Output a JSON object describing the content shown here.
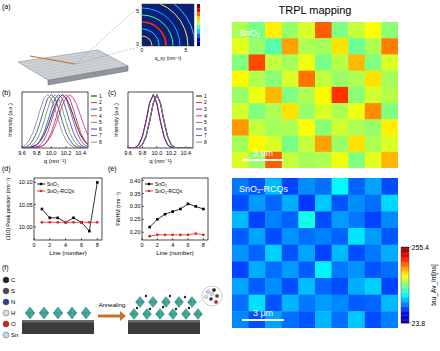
{
  "panel_a": {
    "label": "(a)",
    "axis_label": "q_xy (nm⁻¹)",
    "tick_labels": [
      "0",
      "5",
      "0",
      "5"
    ]
  },
  "chart_data": [
    {
      "type": "line",
      "title": "(b)",
      "x_label": "q (nm⁻¹)",
      "y_label": "Intensity (a.u.)",
      "x": [
        9.6,
        9.65,
        9.7,
        9.75,
        9.8,
        9.85,
        9.9,
        9.95,
        10,
        10.05,
        10.1,
        10.15,
        10.2,
        10.25,
        10.3,
        10.35,
        10.4,
        10.45,
        10.5
      ],
      "xlim": [
        9.6,
        10.5
      ],
      "xticks": [
        9.6,
        9.8,
        {
          "value": 10,
          "label": "10.0"
        },
        10.2,
        10.4
      ],
      "ylim": [
        0,
        1.05
      ],
      "tick_labels": "x",
      "legend": "right",
      "series": [
        {
          "name": "1",
          "color": "#000000",
          "values": [
            0,
            0,
            0.01,
            0.03,
            0.06,
            0.13,
            0.24,
            0.4,
            0.6,
            0.8,
            0.94,
            1,
            0.94,
            0.8,
            0.6,
            0.4,
            0.24,
            0.13,
            0.06
          ]
        },
        {
          "name": "2",
          "color": "#cc1f1f",
          "values": [
            0,
            0,
            0,
            0,
            0.01,
            0.02,
            0.06,
            0.15,
            0.29,
            0.5,
            0.73,
            0.93,
            1,
            0.93,
            0.73,
            0.5,
            0.29,
            0.15,
            0.06
          ]
        },
        {
          "name": "3",
          "color": "#1f3fbf",
          "values": [
            0,
            0,
            0.01,
            0.02,
            0.06,
            0.15,
            0.29,
            0.5,
            0.73,
            0.93,
            1,
            0.93,
            0.73,
            0.5,
            0.29,
            0.15,
            0.06,
            0.02,
            0.01
          ]
        },
        {
          "name": "4",
          "color": "#d02090",
          "values": [
            0,
            0,
            0,
            0,
            0.01,
            0.03,
            0.06,
            0.13,
            0.24,
            0.4,
            0.6,
            0.8,
            0.94,
            1,
            0.94,
            0.8,
            0.6,
            0.4,
            0.24
          ]
        },
        {
          "name": "5",
          "color": "#6a8a2a",
          "values": [
            0,
            0.01,
            0.02,
            0.06,
            0.15,
            0.29,
            0.5,
            0.73,
            0.93,
            1,
            0.93,
            0.73,
            0.5,
            0.29,
            0.15,
            0.06,
            0.02,
            0.01,
            0
          ]
        },
        {
          "name": "6",
          "color": "#2a3a90",
          "values": [
            0.01,
            0.02,
            0.06,
            0.15,
            0.29,
            0.5,
            0.73,
            0.93,
            1,
            0.93,
            0.73,
            0.5,
            0.29,
            0.15,
            0.06,
            0.02,
            0.01,
            0,
            0
          ]
        },
        {
          "name": "7",
          "color": "#8b2aa0",
          "values": [
            0,
            0,
            0,
            0.01,
            0.02,
            0.06,
            0.15,
            0.29,
            0.5,
            0.73,
            0.93,
            1,
            0.93,
            0.73,
            0.5,
            0.29,
            0.15,
            0.06,
            0.02
          ]
        },
        {
          "name": "8",
          "color": "#808080",
          "values": [
            0.02,
            0.06,
            0.15,
            0.29,
            0.5,
            0.73,
            0.93,
            1,
            0.93,
            0.73,
            0.5,
            0.29,
            0.15,
            0.06,
            0.02,
            0.01,
            0,
            0,
            0
          ]
        }
      ]
    },
    {
      "type": "line",
      "title": "(c)",
      "x_label": "q (nm⁻¹)",
      "y_label": "Intensity (a.u.)",
      "x": [
        9.6,
        9.65,
        9.7,
        9.75,
        9.8,
        9.85,
        9.9,
        9.95,
        10,
        10.05,
        10.1,
        10.15,
        10.2,
        10.25,
        10.3,
        10.35,
        10.4,
        10.45,
        10.5
      ],
      "xlim": [
        9.6,
        10.5
      ],
      "xticks": [
        9.6,
        9.8,
        {
          "value": 10,
          "label": "10.0"
        },
        10.2,
        10.4
      ],
      "ylim": [
        0,
        1.05
      ],
      "tick_labels": "x",
      "legend": "right",
      "series": [
        {
          "name": "1",
          "color": "#000000",
          "values": [
            0,
            0,
            0,
            0.01,
            0.06,
            0.21,
            0.5,
            0.84,
            1,
            0.84,
            0.5,
            0.21,
            0.06,
            0.01,
            0,
            0,
            0,
            0,
            0
          ]
        },
        {
          "name": "2",
          "color": "#cc1f1f",
          "values": [
            0,
            0,
            0.01,
            0.06,
            0.21,
            0.5,
            0.84,
            1,
            0.84,
            0.5,
            0.21,
            0.06,
            0.01,
            0,
            0,
            0,
            0,
            0,
            0
          ]
        },
        {
          "name": "3",
          "color": "#1f3fbf",
          "values": [
            0,
            0,
            0,
            0.01,
            0.07,
            0.23,
            0.52,
            0.85,
            0.98,
            0.82,
            0.48,
            0.2,
            0.06,
            0.01,
            0,
            0,
            0,
            0,
            0
          ]
        },
        {
          "name": "4",
          "color": "#d02090",
          "values": [
            0,
            0,
            0.01,
            0.06,
            0.21,
            0.5,
            0.84,
            1,
            0.84,
            0.5,
            0.21,
            0.06,
            0.01,
            0,
            0,
            0,
            0,
            0,
            0
          ]
        },
        {
          "name": "5",
          "color": "#6a8a2a",
          "values": [
            0,
            0,
            0,
            0.01,
            0.06,
            0.21,
            0.5,
            0.84,
            1,
            0.84,
            0.5,
            0.21,
            0.06,
            0.01,
            0,
            0,
            0,
            0,
            0
          ]
        },
        {
          "name": "6",
          "color": "#2a3a90",
          "values": [
            0,
            0,
            0.01,
            0.07,
            0.23,
            0.52,
            0.86,
            1,
            0.82,
            0.48,
            0.2,
            0.05,
            0.01,
            0,
            0,
            0,
            0,
            0,
            0
          ]
        },
        {
          "name": "7",
          "color": "#8b2aa0",
          "values": [
            0,
            0,
            0,
            0.01,
            0.06,
            0.21,
            0.5,
            0.84,
            1,
            0.84,
            0.5,
            0.21,
            0.06,
            0.01,
            0,
            0,
            0,
            0,
            0
          ]
        },
        {
          "name": "8",
          "color": "#808080",
          "values": [
            0,
            0,
            0,
            0.01,
            0.06,
            0.21,
            0.5,
            0.84,
            1,
            0.84,
            0.5,
            0.21,
            0.06,
            0.01,
            0,
            0,
            0,
            0,
            0
          ]
        }
      ]
    },
    {
      "type": "line",
      "title": "(d)",
      "x_label": "Line (number)",
      "y_label": "(110) Peak position (nm⁻¹)",
      "x": [
        1,
        2,
        3,
        4,
        5,
        6,
        7,
        8
      ],
      "xlim": [
        0,
        8.6
      ],
      "xticks": [
        0,
        2,
        4,
        6,
        8
      ],
      "ylim": [
        9.97,
        10.11
      ],
      "yticks": [
        {
          "value": 10,
          "label": "10.00"
        },
        10.05,
        {
          "value": 10.1,
          "label": "10.10"
        }
      ],
      "legend": "upper-left",
      "series": [
        {
          "name": "SnO₂",
          "color": "#000000",
          "marker": "square",
          "values": [
            10.04,
            10.02,
            10.02,
            10.01,
            10.02,
            10.01,
            9.99,
            10.1
          ]
        },
        {
          "name": "SnO₂-RCQs",
          "color": "#e8251f",
          "marker": "circle",
          "values": [
            10.01,
            10.01,
            10.01,
            10.01,
            10.01,
            10.01,
            10.01,
            10.01
          ]
        }
      ]
    },
    {
      "type": "line",
      "title": "(e)",
      "x_label": "Line (number)",
      "y_label": "FWHM (nm⁻¹)",
      "x": [
        1,
        2,
        3,
        4,
        5,
        6,
        7,
        8
      ],
      "xlim": [
        0,
        8.6
      ],
      "xticks": [
        0,
        2,
        4,
        6,
        8
      ],
      "ylim": [
        0.17,
        0.41
      ],
      "yticks": [
        {
          "value": 0.2,
          "label": "0.20"
        },
        0.25,
        {
          "value": 0.3,
          "label": "0.30"
        },
        0.35,
        {
          "value": 0.4,
          "label": "0.40"
        }
      ],
      "legend": "upper-left",
      "series": [
        {
          "name": "SnO₂",
          "color": "#000000",
          "marker": "square",
          "values": [
            0.22,
            0.25,
            0.27,
            0.28,
            0.29,
            0.31,
            0.3,
            0.29
          ]
        },
        {
          "name": "SnO₂-RCQs",
          "color": "#e8251f",
          "marker": "circle",
          "values": [
            0.185,
            0.19,
            0.19,
            0.19,
            0.19,
            0.19,
            0.195,
            0.19
          ]
        }
      ]
    }
  ],
  "panel_f": {
    "label": "(f)",
    "arrow_label": "Annealing",
    "atoms": [
      {
        "label": "C",
        "color": "#222222"
      },
      {
        "label": "S",
        "color": "#4a4a4a"
      },
      {
        "label": "N",
        "color": "#2a3fa0"
      },
      {
        "label": "H",
        "color": "#dddddd"
      },
      {
        "label": "O",
        "color": "#d02020"
      },
      {
        "label": "Sn",
        "color": "#b9d9ef"
      }
    ]
  },
  "trpl": {
    "title": "TRPL mapping",
    "colorbar": {
      "label": "tau_Av_Int[ns]",
      "range": [
        23.8,
        255.4
      ],
      "ticks": [
        23.8,
        255.4
      ]
    },
    "maps": [
      {
        "label": "SnO₂",
        "scale_bar": "3 μm",
        "cells": [
          [
            150,
            138,
            172,
            145,
            160,
            205,
            140,
            155,
            168,
            142
          ],
          [
            162,
            145,
            130,
            190,
            150,
            148,
            175,
            135,
            150,
            198
          ],
          [
            140,
            210,
            155,
            148,
            165,
            138,
            152,
            185,
            140,
            160
          ],
          [
            170,
            150,
            142,
            160,
            200,
            155,
            145,
            150,
            175,
            148
          ],
          [
            145,
            165,
            185,
            140,
            150,
            170,
            215,
            142,
            158,
            152
          ],
          [
            158,
            140,
            150,
            175,
            145,
            160,
            150,
            165,
            195,
            140
          ],
          [
            192,
            155,
            148,
            150,
            168,
            142,
            158,
            150,
            145,
            172
          ],
          [
            148,
            170,
            160,
            138,
            155,
            190,
            145,
            175,
            150,
            160
          ],
          [
            160,
            145,
            205,
            155,
            148,
            150,
            165,
            140,
            162,
            185
          ]
        ]
      },
      {
        "label": "SnO₂-RCQs",
        "scale_bar": "3 μm",
        "cells": [
          [
            80,
            72,
            95,
            68,
            85,
            78,
            110,
            75,
            90,
            70
          ],
          [
            70,
            88,
            76,
            92,
            65,
            98,
            72,
            85,
            78,
            102
          ],
          [
            95,
            68,
            82,
            75,
            115,
            70,
            88,
            80,
            68,
            84
          ],
          [
            74,
            90,
            70,
            86,
            78,
            82,
            75,
            105,
            88,
            72
          ],
          [
            86,
            76,
            100,
            72,
            90,
            68,
            95,
            70,
            80,
            92
          ],
          [
            68,
            92,
            78,
            88,
            74,
            108,
            80,
            86,
            72,
            78
          ],
          [
            90,
            74,
            85,
            70,
            96,
            76,
            70,
            92,
            100,
            68
          ],
          [
            78,
            104,
            72,
            94,
            80,
            88,
            84,
            74,
            76,
            95
          ],
          [
            84,
            70,
            90,
            78,
            72,
            94,
            78,
            98,
            70,
            82
          ]
        ]
      }
    ]
  }
}
